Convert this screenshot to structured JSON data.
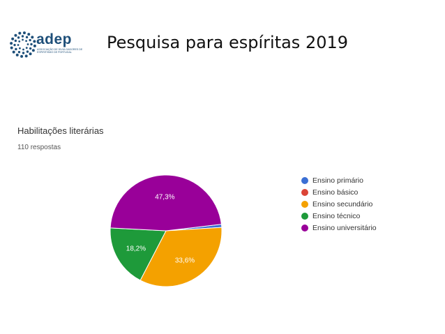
{
  "slide": {
    "title": "Pesquisa para espíritas  2019",
    "logo": {
      "word": "adep",
      "subtitle": "Associação de Divulgadores de Espiritismo de Portugal",
      "color": "#1e4f79"
    }
  },
  "chart_data": {
    "type": "pie",
    "title": "Habilitações literárias",
    "subtitle": "110 respostas",
    "legend_position": "right",
    "slices": [
      {
        "name": "Ensino primário",
        "value": 0.9,
        "color": "#3b6fd4",
        "label": ""
      },
      {
        "name": "Ensino básico",
        "value": 0.0,
        "color": "#db4437",
        "label": ""
      },
      {
        "name": "Ensino secundário",
        "value": 33.6,
        "color": "#f4a100",
        "label": "33,6%"
      },
      {
        "name": "Ensino técnico",
        "value": 18.2,
        "color": "#1e9a3a",
        "label": "18,2%"
      },
      {
        "name": "Ensino universitário",
        "value": 47.3,
        "color": "#990099",
        "label": "47,3%"
      }
    ]
  }
}
